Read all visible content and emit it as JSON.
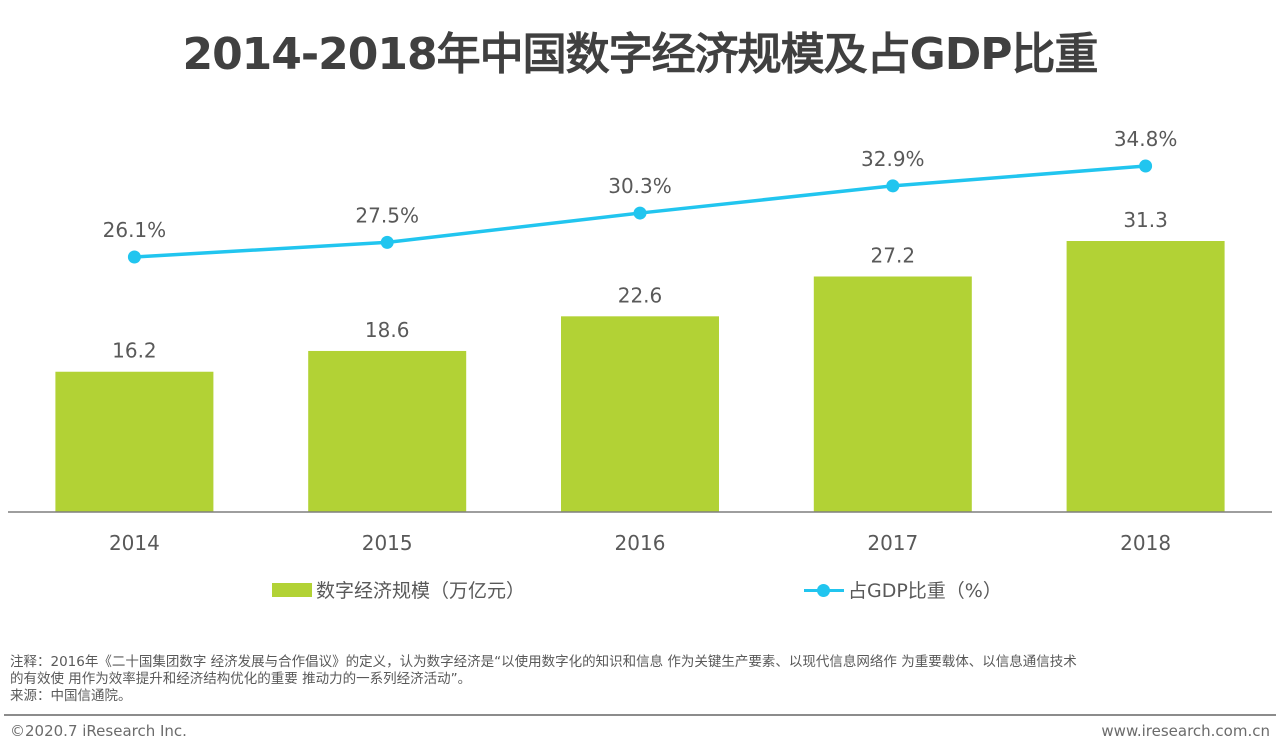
{
  "title": "2014-2018年中国数字经济规模及占GDP比重",
  "chart_data": {
    "type": "bar+line",
    "title": "2014-2018年中国数字经济规模及占GDP比重",
    "categories": [
      "2014",
      "2015",
      "2016",
      "2017",
      "2018"
    ],
    "series": [
      {
        "name": "数字经济规模（万亿元）",
        "type": "bar",
        "axis": "primary",
        "color": "#b2d235",
        "values": [
          16.2,
          18.6,
          22.6,
          27.2,
          31.3
        ],
        "labels": [
          "16.2",
          "18.6",
          "22.6",
          "27.2",
          "31.3"
        ]
      },
      {
        "name": "占GDP比重（%）",
        "type": "line",
        "axis": "secondary",
        "color": "#21c5ef",
        "values": [
          26.1,
          27.5,
          30.3,
          32.9,
          34.8
        ],
        "labels": [
          "26.1%",
          "27.5%",
          "30.3%",
          "32.9%",
          "34.8%"
        ]
      }
    ],
    "xlabel": "",
    "ylabel": "",
    "ylim_primary": [
      0,
      40
    ],
    "ylim_secondary": [
      0,
      40
    ],
    "grid": false,
    "legend": "bottom"
  },
  "legend": {
    "bar_label": "数字经济规模（万亿元）",
    "line_label": "占GDP比重（%）"
  },
  "notes": {
    "line1": "注释：2016年《二十国集团数字 经济发展与合作倡议》的定义，认为数字经济是“以使用数字化的知识和信息 作为关键生产要素、以现代信息网络作 为重要载体、以信息通信技术",
    "line2": "的有效使 用作为效率提升和经济结构优化的重要 推动力的一系列经济活动”。",
    "source": "来源：中国信通院。"
  },
  "footer": {
    "copyright": "©2020.7 iResearch Inc.",
    "website": "www.iresearch.com.cn"
  }
}
